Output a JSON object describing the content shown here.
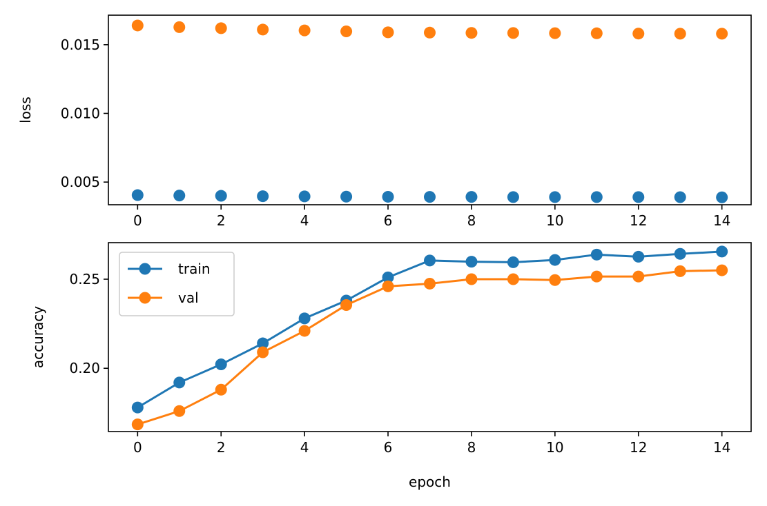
{
  "chart_data": [
    {
      "type": "scatter",
      "xlabel": "",
      "ylabel": "loss",
      "xlim": [
        -0.7,
        14.7
      ],
      "ylim": [
        0.00335,
        0.01715
      ],
      "xticks": [
        0,
        2,
        4,
        6,
        8,
        10,
        12,
        14
      ],
      "xtick_labels": [
        "0",
        "2",
        "4",
        "6",
        "8",
        "10",
        "12",
        "14"
      ],
      "yticks": [
        0.005,
        0.01,
        0.015
      ],
      "ytick_labels": [
        "0.005",
        "0.010",
        "0.015"
      ],
      "legend": null,
      "series": [
        {
          "color": "#1f77b4",
          "x": [
            0,
            1,
            2,
            3,
            4,
            5,
            6,
            7,
            8,
            9,
            10,
            11,
            12,
            13,
            14
          ],
          "y": [
            0.00405,
            0.00402,
            0.004,
            0.00397,
            0.00396,
            0.00394,
            0.00393,
            0.00392,
            0.00392,
            0.00391,
            0.00391,
            0.00391,
            0.00391,
            0.0039,
            0.00389
          ]
        },
        {
          "color": "#ff7f0e",
          "x": [
            0,
            1,
            2,
            3,
            4,
            5,
            6,
            7,
            8,
            9,
            10,
            11,
            12,
            13,
            14
          ],
          "y": [
            0.0164,
            0.01628,
            0.0162,
            0.0161,
            0.01604,
            0.01597,
            0.0159,
            0.01588,
            0.01586,
            0.01585,
            0.01584,
            0.01583,
            0.01581,
            0.0158,
            0.0158
          ]
        }
      ]
    },
    {
      "type": "line",
      "xlabel": "epoch",
      "ylabel": "accuracy",
      "xlim": [
        -0.7,
        14.7
      ],
      "ylim": [
        0.1645,
        0.2705
      ],
      "xticks": [
        0,
        2,
        4,
        6,
        8,
        10,
        12,
        14
      ],
      "xtick_labels": [
        "0",
        "2",
        "4",
        "6",
        "8",
        "10",
        "12",
        "14"
      ],
      "yticks": [
        0.2,
        0.25
      ],
      "ytick_labels": [
        "0.20",
        "0.25"
      ],
      "legend": "top-left",
      "series": [
        {
          "name": "train",
          "color": "#1f77b4",
          "x": [
            0,
            1,
            2,
            3,
            4,
            5,
            6,
            7,
            8,
            9,
            10,
            11,
            12,
            13,
            14
          ],
          "y": [
            0.178,
            0.192,
            0.2022,
            0.214,
            0.228,
            0.238,
            0.251,
            0.2605,
            0.2598,
            0.2595,
            0.2608,
            0.2638,
            0.2626,
            0.2642,
            0.2655
          ]
        },
        {
          "name": "val",
          "color": "#ff7f0e",
          "x": [
            0,
            1,
            2,
            3,
            4,
            5,
            6,
            7,
            8,
            9,
            10,
            11,
            12,
            13,
            14
          ],
          "y": [
            0.1685,
            0.176,
            0.188,
            0.209,
            0.221,
            0.2355,
            0.246,
            0.2475,
            0.25,
            0.25,
            0.2495,
            0.2515,
            0.2515,
            0.2545,
            0.255
          ]
        }
      ]
    }
  ]
}
